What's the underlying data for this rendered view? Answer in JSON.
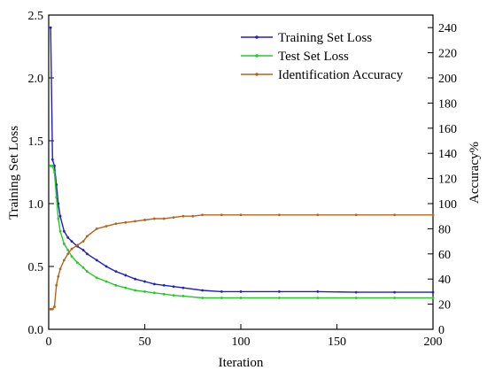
{
  "chart_data": {
    "type": "line",
    "xlabel": "Iteration",
    "ylabel_left": "Training Set Loss",
    "ylabel_right": "Accuracy%",
    "xlim": [
      0,
      200
    ],
    "ylim_left": [
      0,
      2.5
    ],
    "ylim_right": [
      0,
      250
    ],
    "x_ticks": [
      0,
      50,
      100,
      150,
      200
    ],
    "y_ticks_left": [
      0.0,
      0.5,
      1.0,
      1.5,
      2.0,
      2.5
    ],
    "y_ticks_left_labels": [
      "0.0",
      "0.5",
      "1.0",
      "1.5",
      "2.0",
      "2.5"
    ],
    "y_ticks_right": [
      0,
      20,
      40,
      60,
      80,
      100,
      120,
      140,
      160,
      180,
      200,
      220,
      240
    ],
    "legend_position": "top-right",
    "grid": false,
    "series": [
      {
        "name": "Training Set Loss",
        "axis": "left",
        "color": "#1f1fc8",
        "x": [
          1,
          2,
          3,
          4,
          5,
          6,
          8,
          10,
          12,
          15,
          18,
          20,
          25,
          30,
          35,
          40,
          45,
          50,
          55,
          60,
          65,
          70,
          80,
          90,
          100,
          120,
          140,
          160,
          180,
          200
        ],
        "y": [
          2.4,
          1.35,
          1.3,
          1.15,
          1.0,
          0.9,
          0.78,
          0.73,
          0.7,
          0.66,
          0.63,
          0.6,
          0.55,
          0.5,
          0.46,
          0.43,
          0.4,
          0.38,
          0.36,
          0.35,
          0.34,
          0.33,
          0.31,
          0.3,
          0.3,
          0.3,
          0.3,
          0.295,
          0.295,
          0.295
        ]
      },
      {
        "name": "Test Set Loss",
        "axis": "left",
        "color": "#22cc22",
        "x": [
          1,
          2,
          3,
          4,
          5,
          6,
          8,
          10,
          12,
          15,
          18,
          20,
          25,
          30,
          35,
          40,
          45,
          50,
          55,
          60,
          65,
          70,
          80,
          90,
          100,
          120,
          140,
          160,
          180,
          200
        ],
        "y": [
          1.3,
          1.3,
          1.25,
          1.05,
          0.88,
          0.78,
          0.68,
          0.63,
          0.58,
          0.53,
          0.49,
          0.46,
          0.41,
          0.38,
          0.35,
          0.33,
          0.31,
          0.3,
          0.29,
          0.28,
          0.27,
          0.265,
          0.25,
          0.25,
          0.25,
          0.25,
          0.25,
          0.25,
          0.25,
          0.25
        ]
      },
      {
        "name": "Identification Accuracy",
        "axis": "right",
        "color": "#b5651d",
        "x": [
          1,
          2,
          3,
          4,
          5,
          6,
          8,
          10,
          12,
          15,
          18,
          20,
          25,
          30,
          35,
          40,
          45,
          50,
          55,
          60,
          65,
          70,
          75,
          80,
          90,
          100,
          120,
          140,
          160,
          180,
          200
        ],
        "y": [
          16,
          16,
          18,
          35,
          42,
          48,
          55,
          60,
          64,
          67,
          70,
          74,
          80,
          82,
          84,
          85,
          86,
          87,
          88,
          88,
          89,
          90,
          90,
          91,
          91,
          91,
          91,
          91,
          91,
          91,
          91
        ]
      }
    ]
  }
}
